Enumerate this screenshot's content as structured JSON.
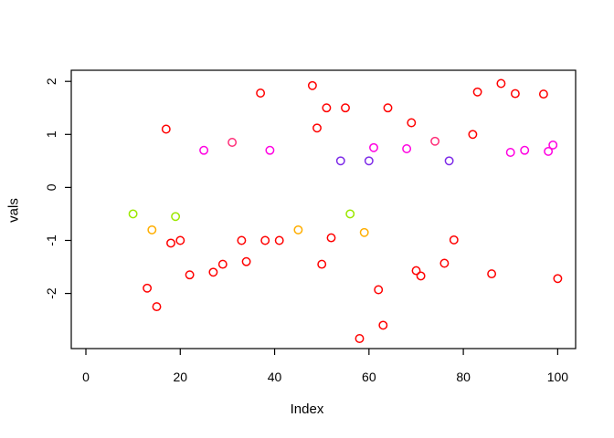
{
  "axes": {
    "x_label": "Index",
    "y_label": "vals",
    "x_ticks": [
      0,
      20,
      40,
      60,
      80,
      100
    ],
    "y_ticks": [
      -2,
      -1,
      0,
      1,
      2
    ],
    "xlim": [
      -3.1,
      103.8
    ],
    "ylim": [
      -3.04,
      2.21
    ]
  },
  "palette": {
    "red": "#FF0000",
    "green": "#9BE800",
    "orange": "#FFAE00",
    "magenta": "#FF00E1",
    "purple": "#7D2AE8",
    "pink": "#FF2D78"
  },
  "chart_data": {
    "type": "scatter",
    "title": "",
    "xlabel": "Index",
    "ylabel": "vals",
    "xlim": [
      -3.1,
      103.8
    ],
    "ylim": [
      -3.04,
      2.21
    ],
    "grid": false,
    "marker": "open-circle",
    "x": [
      10,
      13,
      14,
      15,
      17,
      18,
      19,
      20,
      22,
      25,
      27,
      29,
      31,
      33,
      34,
      37,
      38,
      39,
      41,
      45,
      48,
      49,
      50,
      51,
      52,
      54,
      55,
      56,
      58,
      59,
      60,
      61,
      62,
      63,
      64,
      68,
      69,
      70,
      71,
      74,
      76,
      77,
      78,
      82,
      83,
      86,
      88,
      90,
      91,
      93,
      97,
      98,
      99,
      100
    ],
    "y": [
      -0.5,
      -1.9,
      -0.8,
      -2.25,
      1.1,
      -1.05,
      -0.55,
      -1.0,
      -1.65,
      0.7,
      -1.6,
      -1.45,
      0.85,
      -1.0,
      -1.4,
      1.78,
      -1.0,
      0.7,
      -1.0,
      -0.8,
      1.92,
      1.12,
      -1.45,
      1.5,
      -0.95,
      0.5,
      1.5,
      -0.5,
      -2.85,
      -0.85,
      0.5,
      0.75,
      -1.93,
      -2.6,
      1.5,
      0.73,
      1.22,
      -1.57,
      -1.67,
      0.87,
      -1.43,
      0.5,
      -0.99,
      1.0,
      1.8,
      -1.63,
      1.96,
      0.66,
      1.77,
      0.7,
      1.76,
      0.68,
      0.8,
      -1.72
    ],
    "colors": [
      "green",
      "red",
      "orange",
      "red",
      "red",
      "red",
      "green",
      "red",
      "red",
      "magenta",
      "red",
      "red",
      "pink",
      "red",
      "red",
      "red",
      "red",
      "magenta",
      "red",
      "orange",
      "red",
      "red",
      "red",
      "red",
      "red",
      "purple",
      "red",
      "green",
      "red",
      "orange",
      "purple",
      "magenta",
      "red",
      "red",
      "red",
      "magenta",
      "red",
      "red",
      "red",
      "pink",
      "red",
      "purple",
      "red",
      "red",
      "red",
      "red",
      "red",
      "magenta",
      "red",
      "magenta",
      "red",
      "magenta",
      "magenta",
      "red"
    ]
  }
}
